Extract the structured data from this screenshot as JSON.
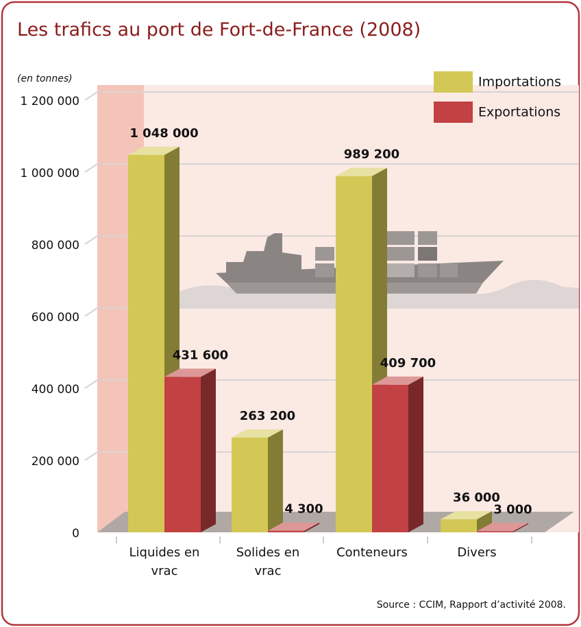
{
  "chart_data": {
    "type": "bar3d",
    "title": "Les trafics au port de Fort-de-France (2008)",
    "unit_label": "(en tonnes)",
    "source": "Source : CCIM, Rapport d’activité 2008.",
    "categories": [
      "Liquides en vrac",
      "Solides en vrac",
      "Conteneurs",
      "Divers"
    ],
    "series": [
      {
        "name": "Importations",
        "color": "#d3c855",
        "values": [
          1048000,
          263200,
          989200,
          36000
        ],
        "value_labels": [
          "1 048 000",
          "263 200",
          "989 200",
          "36 000"
        ]
      },
      {
        "name": "Exportations",
        "color": "#c24142",
        "values": [
          431600,
          4300,
          409700,
          3000
        ],
        "value_labels": [
          "431 600",
          "4 300",
          "409 700",
          "3 000"
        ]
      }
    ],
    "ylim": [
      0,
      1200000
    ],
    "yticks": [
      {
        "value": 0,
        "label": "0"
      },
      {
        "value": 200000,
        "label": "200 000"
      },
      {
        "value": 400000,
        "label": "400 000"
      },
      {
        "value": 600000,
        "label": "600 000"
      },
      {
        "value": 800000,
        "label": "800 000"
      },
      {
        "value": 1000000,
        "label": "1 000 000"
      },
      {
        "value": 1200000,
        "label": "1 200 000"
      }
    ],
    "grid": true
  }
}
